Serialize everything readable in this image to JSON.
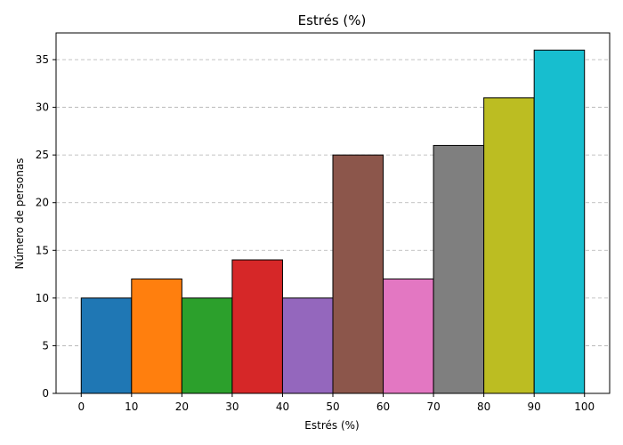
{
  "chart_data": {
    "type": "bar",
    "title": "Estrés (%)",
    "xlabel": "Estrés (%)",
    "ylabel": "Número de personas",
    "bins": [
      [
        0,
        10
      ],
      [
        10,
        20
      ],
      [
        20,
        30
      ],
      [
        30,
        40
      ],
      [
        40,
        50
      ],
      [
        50,
        60
      ],
      [
        60,
        70
      ],
      [
        70,
        80
      ],
      [
        80,
        90
      ],
      [
        90,
        100
      ]
    ],
    "values": [
      10,
      12,
      10,
      14,
      10,
      25,
      12,
      26,
      31,
      36
    ],
    "colors": [
      "#1f77b4",
      "#ff7f0e",
      "#2ca02c",
      "#d62728",
      "#9467bd",
      "#8c564b",
      "#e377c2",
      "#7f7f7f",
      "#bcbd22",
      "#17becf"
    ],
    "xlim": [
      -5,
      105
    ],
    "ylim": [
      0,
      37.8
    ],
    "x_ticks": [
      0,
      10,
      20,
      30,
      40,
      50,
      60,
      70,
      80,
      90,
      100
    ],
    "y_ticks": [
      0,
      5,
      10,
      15,
      20,
      25,
      30,
      35
    ],
    "grid": "y-dashed",
    "legend": "none"
  }
}
